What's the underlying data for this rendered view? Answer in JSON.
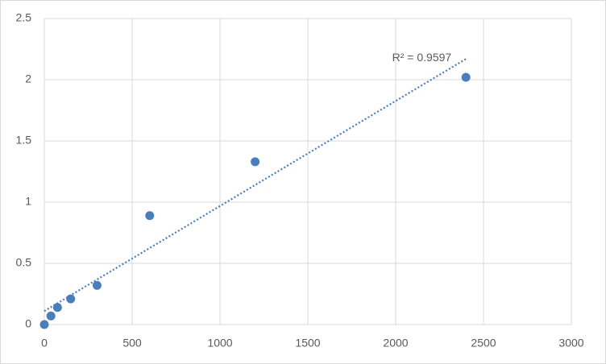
{
  "chart_data": {
    "type": "scatter",
    "x": [
      0,
      37.5,
      75,
      150,
      300,
      600,
      1200,
      2400
    ],
    "values": [
      0,
      0.07,
      0.14,
      0.21,
      0.32,
      0.89,
      1.33,
      2.02
    ],
    "color": "#4a7ebb",
    "xlim": [
      0,
      3000
    ],
    "xticks": [
      0,
      500,
      1000,
      1500,
      2000,
      2500,
      3000
    ],
    "ylim": [
      0,
      2.5
    ],
    "yticks": [
      0,
      0.5,
      1,
      1.5,
      2,
      2.5
    ],
    "grid": true,
    "trendline": {
      "x": [
        0,
        2400
      ],
      "y": [
        0.11,
        2.17
      ],
      "label": "R² = 0.9597"
    }
  }
}
